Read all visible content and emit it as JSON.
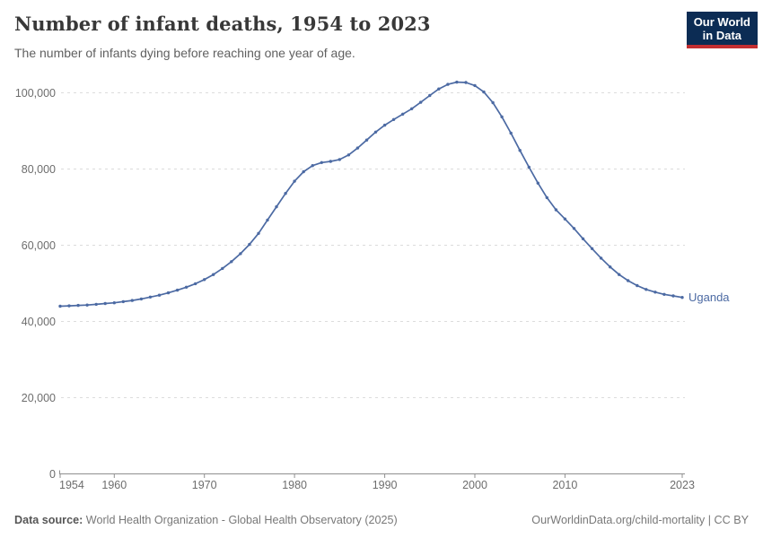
{
  "header": {
    "title": "Number of infant deaths, 1954 to 2023",
    "subtitle": "The number of infants dying before reaching one year of age.",
    "logo": {
      "line1": "Our World",
      "line2": "in Data",
      "bg_color": "#0c2c54",
      "accent_color": "#c32e31"
    }
  },
  "footer": {
    "source_label": "Data source:",
    "source_text": " World Health Organization - Global Health Observatory (2025)",
    "link_text": "OurWorldinData.org/child-mortality | CC BY"
  },
  "chart_data": {
    "type": "line",
    "title": "Number of infant deaths, 1954 to 2023",
    "entity": "Uganda",
    "line_color": "#4c6aa3",
    "axis_color": "#8f8f8f",
    "grid_color": "#dcdcdc",
    "grid_style": "dashed horizontal",
    "legend_position": "end-of-line label",
    "xlabel": "",
    "ylabel": "",
    "x_start": 1954,
    "x_end": 2023,
    "xlim": [
      1954,
      2023
    ],
    "ylim": [
      0,
      106000
    ],
    "x_ticks": [
      {
        "v": 1954,
        "label": "1954",
        "anchor": "start"
      },
      {
        "v": 1960,
        "label": "1960",
        "anchor": "middle"
      },
      {
        "v": 1970,
        "label": "1970",
        "anchor": "middle"
      },
      {
        "v": 1980,
        "label": "1980",
        "anchor": "middle"
      },
      {
        "v": 1990,
        "label": "1990",
        "anchor": "middle"
      },
      {
        "v": 2000,
        "label": "2000",
        "anchor": "middle"
      },
      {
        "v": 2010,
        "label": "2010",
        "anchor": "middle"
      },
      {
        "v": 2023,
        "label": "2023",
        "anchor": "middle"
      }
    ],
    "y_ticks": [
      {
        "v": 0,
        "label": "0"
      },
      {
        "v": 20000,
        "label": "20,000"
      },
      {
        "v": 40000,
        "label": "40,000"
      },
      {
        "v": 60000,
        "label": "60,000"
      },
      {
        "v": 80000,
        "label": "80,000"
      },
      {
        "v": 100000,
        "label": "100,000"
      }
    ],
    "values": [
      44000,
      44100,
      44200,
      44300,
      44500,
      44700,
      44900,
      45200,
      45500,
      45900,
      46400,
      46900,
      47500,
      48200,
      49000,
      49900,
      51000,
      52300,
      53900,
      55700,
      57800,
      60200,
      63100,
      66600,
      70100,
      73600,
      76800,
      79300,
      80900,
      81700,
      82000,
      82500,
      83700,
      85500,
      87600,
      89700,
      91500,
      93000,
      94400,
      95800,
      97500,
      99300,
      101000,
      102200,
      102800,
      102700,
      101900,
      100200,
      97400,
      93700,
      89400,
      84900,
      80500,
      76300,
      72500,
      69300,
      66900,
      64400,
      61700,
      59100,
      56600,
      54300,
      52300,
      50700,
      49400,
      48400,
      47700,
      47100,
      46700,
      46300
    ]
  }
}
